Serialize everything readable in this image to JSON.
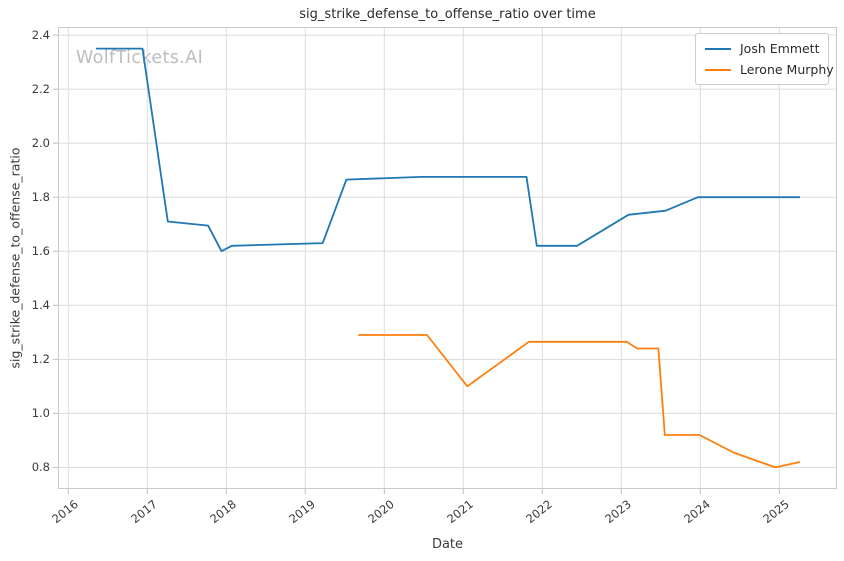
{
  "watermark": {
    "text": "WolfTickets.AI",
    "color": "#bdbdbd"
  },
  "chart_data": {
    "type": "line",
    "title": "sig_strike_defense_to_offense_ratio over time",
    "xlabel": "Date",
    "ylabel": "sig_strike_defense_to_offense_ratio",
    "grid": true,
    "legend_position": "upper-right",
    "xlim": [
      2015.87,
      2025.73
    ],
    "ylim": [
      0.72,
      2.43
    ],
    "x_ticks": [
      {
        "label": "2016",
        "value": 2016
      },
      {
        "label": "2017",
        "value": 2017
      },
      {
        "label": "2018",
        "value": 2018
      },
      {
        "label": "2019",
        "value": 2019
      },
      {
        "label": "2020",
        "value": 2020
      },
      {
        "label": "2021",
        "value": 2021
      },
      {
        "label": "2022",
        "value": 2022
      },
      {
        "label": "2023",
        "value": 2023
      },
      {
        "label": "2024",
        "value": 2024
      },
      {
        "label": "2025",
        "value": 2025
      }
    ],
    "y_ticks": [
      {
        "label": "0.8",
        "value": 0.8
      },
      {
        "label": "1.0",
        "value": 1.0
      },
      {
        "label": "1.2",
        "value": 1.2
      },
      {
        "label": "1.4",
        "value": 1.4
      },
      {
        "label": "1.6",
        "value": 1.6
      },
      {
        "label": "1.8",
        "value": 1.8
      },
      {
        "label": "2.0",
        "value": 2.0
      },
      {
        "label": "2.2",
        "value": 2.2
      },
      {
        "label": "2.4",
        "value": 2.4
      }
    ],
    "series": [
      {
        "name": "Josh Emmett",
        "color": "#1f77b4",
        "points": [
          [
            2016.35,
            2.35
          ],
          [
            2016.94,
            2.35
          ],
          [
            2017.26,
            1.71
          ],
          [
            2017.77,
            1.695
          ],
          [
            2017.94,
            1.6
          ],
          [
            2018.07,
            1.62
          ],
          [
            2019.22,
            1.63
          ],
          [
            2019.52,
            1.865
          ],
          [
            2020.47,
            1.875
          ],
          [
            2021.8,
            1.875
          ],
          [
            2021.93,
            1.62
          ],
          [
            2022.44,
            1.62
          ],
          [
            2023.09,
            1.735
          ],
          [
            2023.56,
            1.75
          ],
          [
            2023.97,
            1.8
          ],
          [
            2025.26,
            1.8
          ]
        ]
      },
      {
        "name": "Lerone Murphy",
        "color": "#ff7f0e",
        "points": [
          [
            2019.67,
            1.29
          ],
          [
            2020.54,
            1.29
          ],
          [
            2021.05,
            1.1
          ],
          [
            2021.83,
            1.265
          ],
          [
            2023.07,
            1.265
          ],
          [
            2023.2,
            1.24
          ],
          [
            2023.47,
            1.24
          ],
          [
            2023.55,
            0.92
          ],
          [
            2023.99,
            0.92
          ],
          [
            2024.42,
            0.855
          ],
          [
            2024.95,
            0.8
          ],
          [
            2025.26,
            0.82
          ]
        ]
      }
    ]
  }
}
